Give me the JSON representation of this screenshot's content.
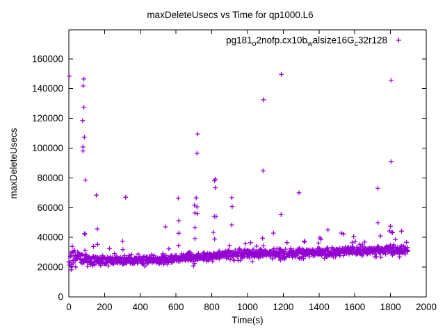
{
  "chart_data": {
    "type": "scatter",
    "title": "maxDeleteUsecs vs Time for qp1000.L6",
    "xlabel": "Time(s)",
    "ylabel": "maxDeleteUsecs",
    "xlim": [
      0,
      2000
    ],
    "ylim": [
      0,
      179500
    ],
    "x_ticks": [
      0,
      200,
      400,
      600,
      800,
      1000,
      1200,
      1400,
      1600,
      1800,
      2000
    ],
    "y_ticks": [
      0,
      20000,
      40000,
      60000,
      80000,
      100000,
      120000,
      140000,
      160000
    ],
    "grid": false,
    "legend_position": "top-right-inside",
    "colors": {
      "marker": "#9400d3",
      "axis": "#000000",
      "background": "#ffffff"
    },
    "series": [
      {
        "name": "pg181_o2nofp.cx10b_walsize16G_c32r128",
        "label_parts": [
          {
            "text": "pg181"
          },
          {
            "text": "o",
            "sub": true
          },
          {
            "text": "2nofp.cx10b"
          },
          {
            "text": "w",
            "sub": true
          },
          {
            "text": "alsize16G"
          },
          {
            "text": "c",
            "sub": true
          },
          {
            "text": "32r128"
          }
        ],
        "marker": "plus",
        "color": "#9400d3",
        "outliers": [
          [
            2,
            148300
          ],
          [
            84,
            146500
          ],
          [
            80,
            141800
          ],
          [
            84,
            127500
          ],
          [
            77,
            118500
          ],
          [
            87,
            107300
          ],
          [
            79,
            100800
          ],
          [
            79,
            98100
          ],
          [
            92,
            78500
          ],
          [
            154,
            68400
          ],
          [
            318,
            67000
          ],
          [
            612,
            66400
          ],
          [
            615,
            51200
          ],
          [
            541,
            47100
          ],
          [
            160,
            45700
          ],
          [
            88,
            42500
          ],
          [
            91,
            42200
          ],
          [
            615,
            42800
          ],
          [
            301,
            37500
          ],
          [
            161,
            35300
          ],
          [
            721,
            109500
          ],
          [
            717,
            96500
          ],
          [
            713,
            66600
          ],
          [
            703,
            61700
          ],
          [
            717,
            60500
          ],
          [
            706,
            56400
          ],
          [
            719,
            56000
          ],
          [
            706,
            46700
          ],
          [
            706,
            39200
          ],
          [
            820,
            79200
          ],
          [
            815,
            78100
          ],
          [
            820,
            73400
          ],
          [
            814,
            54000
          ],
          [
            824,
            54000
          ],
          [
            808,
            43400
          ],
          [
            816,
            38900
          ],
          [
            912,
            66700
          ],
          [
            914,
            60800
          ],
          [
            912,
            48400
          ],
          [
            1089,
            132500
          ],
          [
            1087,
            84800
          ],
          [
            1084,
            39500
          ],
          [
            1145,
            42900
          ],
          [
            1189,
            149500
          ],
          [
            1188,
            55300
          ],
          [
            1288,
            70000
          ],
          [
            1405,
            39700
          ],
          [
            1411,
            38600
          ],
          [
            1450,
            45100
          ],
          [
            1524,
            42900
          ],
          [
            1538,
            42300
          ],
          [
            1594,
            40600
          ],
          [
            1729,
            73000
          ],
          [
            1730,
            49900
          ],
          [
            1744,
            41000
          ],
          [
            1803,
            145500
          ],
          [
            1803,
            91000
          ],
          [
            1794,
            44300
          ],
          [
            1800,
            47500
          ],
          [
            1806,
            43500
          ],
          [
            1812,
            43200
          ],
          [
            1862,
            44200
          ]
        ],
        "band": {
          "seed": 7,
          "count": 1150,
          "t_start": 2,
          "t_end": 1898,
          "trend": [
            [
              0,
              23500
            ],
            [
              35,
              26000
            ],
            [
              75,
              26500
            ],
            [
              130,
              24300
            ],
            [
              300,
              24800
            ],
            [
              550,
              25600
            ],
            [
              700,
              26800
            ],
            [
              850,
              28300
            ],
            [
              1000,
              29300
            ],
            [
              1200,
              29200
            ],
            [
              1350,
              30000
            ],
            [
              1500,
              30700
            ],
            [
              1700,
              31200
            ],
            [
              1900,
              31900
            ]
          ],
          "jitter": 3000,
          "low_frac": 0.06,
          "low_extra": 4000,
          "high_frac": 0.04,
          "high_extra": 8000,
          "early_t": 100,
          "early_extra": 7000,
          "min_v": 16800
        }
      }
    ]
  }
}
